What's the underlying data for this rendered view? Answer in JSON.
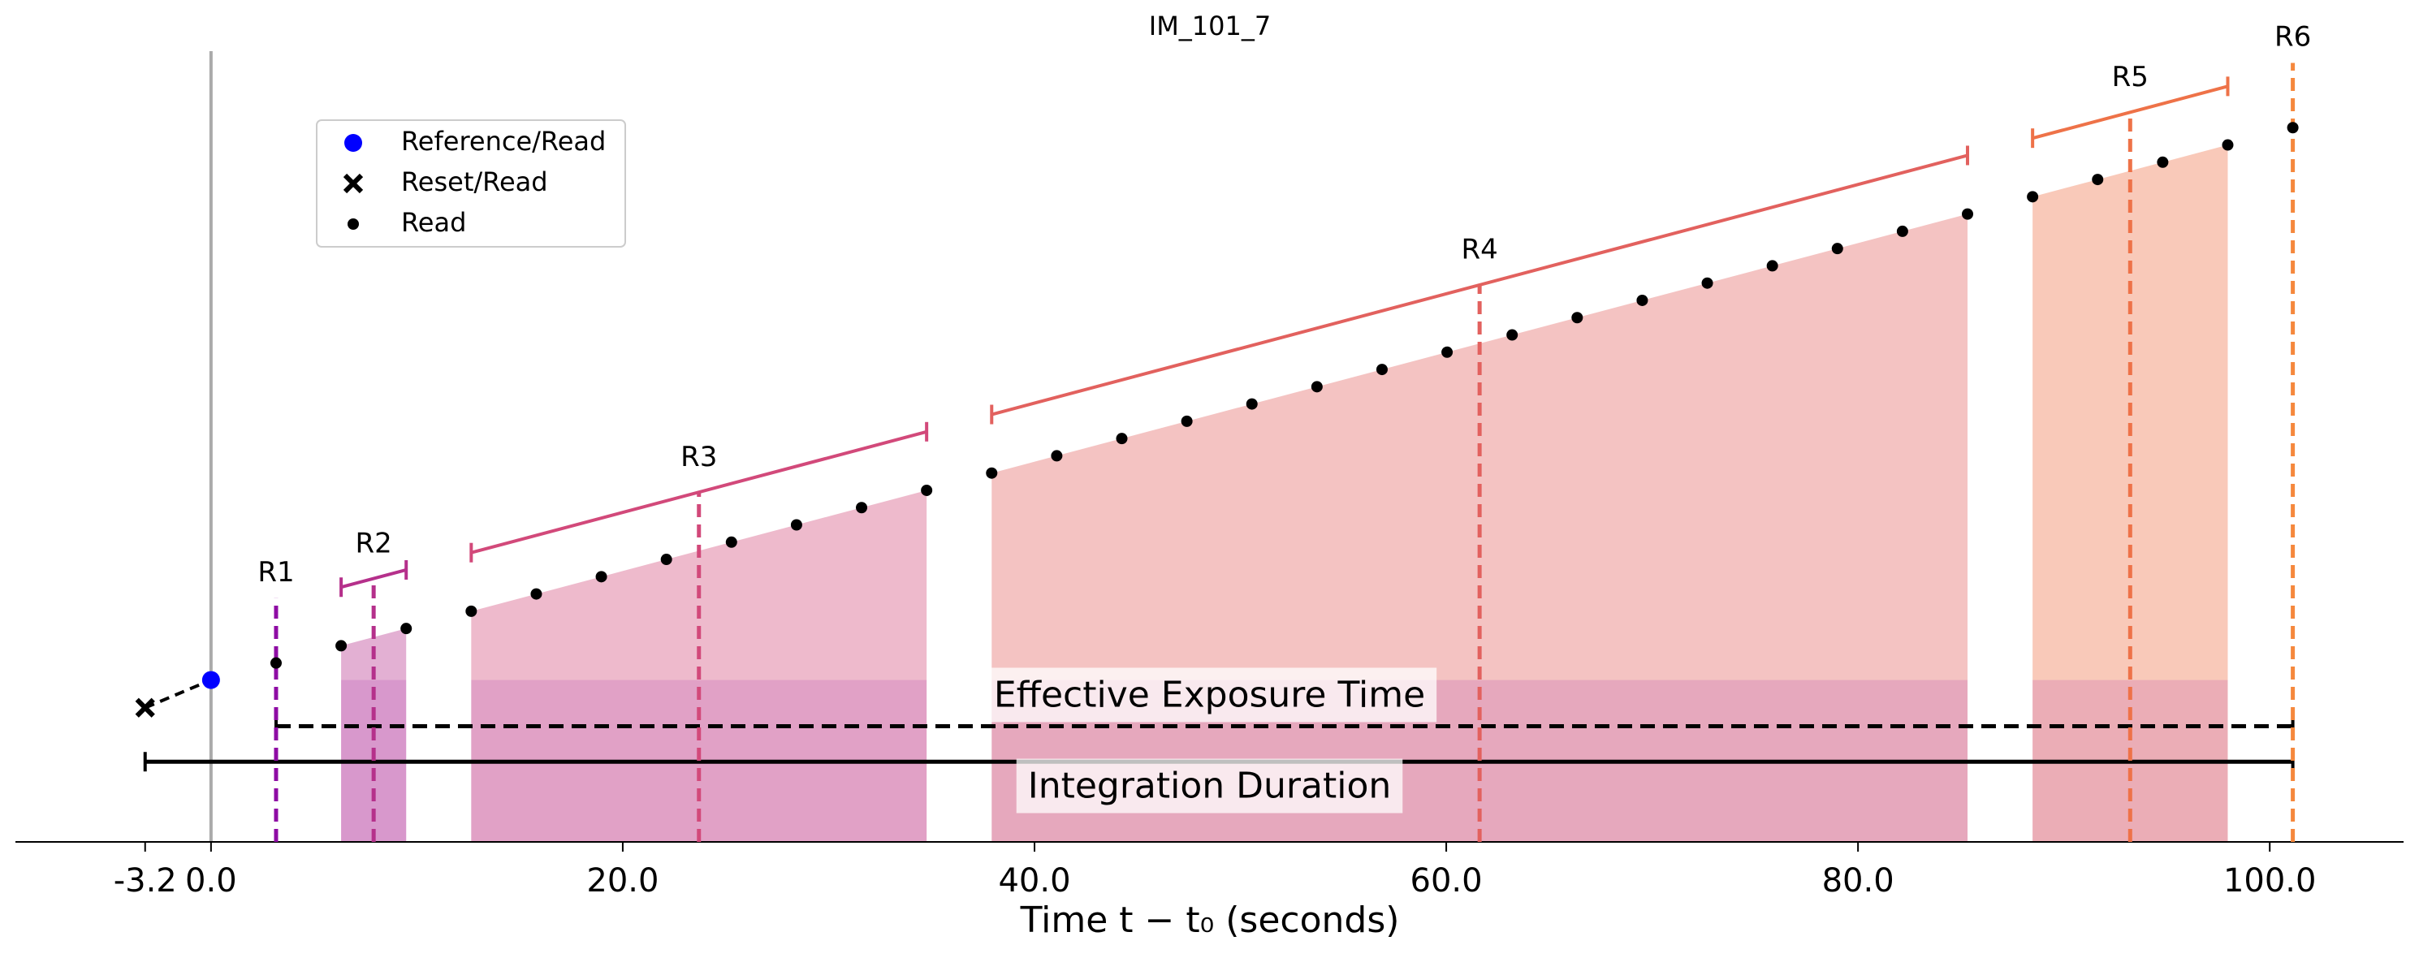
{
  "chart_data": {
    "type": "ramp",
    "title": "IM_101_7",
    "xlabel": "Time t − t₀ (seconds)",
    "xlim": [
      -9.5,
      106.5
    ],
    "ylim": [
      0,
      546
    ],
    "xticks": [
      -3.2,
      {
        "value": 0,
        "label": "0.0"
      },
      {
        "value": 20,
        "label": "20.0"
      },
      {
        "value": 40,
        "label": "40.0"
      },
      {
        "value": 60,
        "label": "60.0"
      },
      {
        "value": 80,
        "label": "80.0"
      },
      {
        "value": 100,
        "label": "100.0"
      }
    ],
    "legend": [
      "Reference/Read",
      "Reset/Read",
      "Read"
    ],
    "legend_loc": "upper left",
    "reference": {
      "x": 0,
      "y": 105,
      "color": "#0000ff"
    },
    "reset": {
      "x": -3.2,
      "y": 87,
      "color": "#000000"
    },
    "read_color": "#000000",
    "resultants": [
      {
        "label": "R1",
        "color": "#8e0ca4",
        "time": 3.16,
        "x": [
          3.16
        ],
        "y": [
          116
        ]
      },
      {
        "label": "R2",
        "color": "#b5308b",
        "time": 7.9,
        "x": [
          6.32,
          9.48
        ],
        "y": [
          127.2,
          138.4
        ]
      },
      {
        "label": "R3",
        "color": "#d2497a",
        "time": 23.7,
        "x": [
          12.64,
          15.8,
          18.96,
          22.12,
          25.28,
          28.44,
          31.6,
          34.76
        ],
        "y": [
          149.6,
          160.8,
          172,
          183.2,
          194.4,
          205.6,
          216.8,
          228
        ]
      },
      {
        "label": "R4",
        "color": "#e2615e",
        "time": 61.62,
        "x": [
          37.92,
          41.08,
          44.24,
          47.4,
          50.56,
          53.72,
          56.88,
          60.04,
          63.2,
          66.36,
          69.52,
          72.68,
          75.84,
          79,
          82.16,
          85.32
        ],
        "y": [
          239.2,
          250.4,
          261.6,
          272.8,
          284,
          295.2,
          306.4,
          317.6,
          328.8,
          340,
          351.2,
          362.4,
          373.6,
          384.8,
          396,
          407.2
        ]
      },
      {
        "label": "R5",
        "color": "#ee7248",
        "time": 93.22,
        "x": [
          88.48,
          91.64,
          94.8,
          97.96
        ],
        "y": [
          418.4,
          429.6,
          440.8,
          452
        ]
      },
      {
        "label": "R6",
        "color": "#f5883d",
        "time": 101.12,
        "x": [
          101.12
        ],
        "y": [
          463.2
        ]
      }
    ],
    "effective_exposure": {
      "label": "Effective Exposure Time",
      "start": 3.16,
      "end": 101.12
    },
    "integration": {
      "label": "Integration Duration",
      "start": -3.2,
      "end": 101.12
    }
  }
}
